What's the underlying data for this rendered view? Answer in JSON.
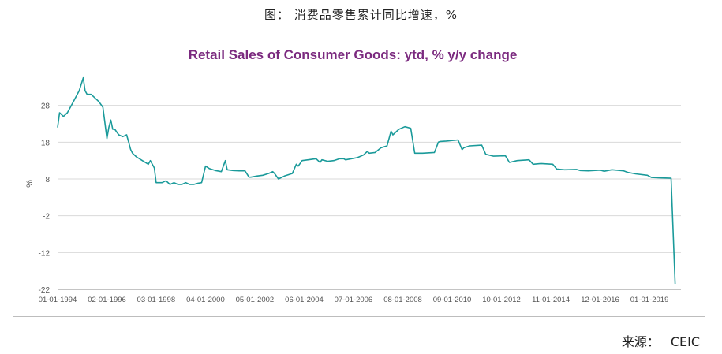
{
  "caption": "图：  消费品零售累计同比增速，%",
  "source": {
    "label": "来源：",
    "value": "CEIC"
  },
  "chart_data": {
    "type": "line",
    "title": "Retail Sales of Consumer Goods: ytd, % y/y change",
    "xlabel": "",
    "ylabel": "%",
    "ylim": [
      -22,
      38
    ],
    "yticks": [
      -22,
      -12,
      -2,
      8,
      18,
      28
    ],
    "xlim": [
      "1994-01-01",
      "2020-05-01"
    ],
    "xticks": [
      "01-01-1994",
      "02-01-1996",
      "03-01-1998",
      "04-01-2000",
      "05-01-2002",
      "06-01-2004",
      "07-01-2006",
      "08-01-2008",
      "09-01-2010",
      "10-01-2012",
      "11-01-2014",
      "12-01-2016",
      "01-01-2019"
    ],
    "grid": "horizontal",
    "colors": {
      "line": "#1a9a9a",
      "title": "#7b2a7f",
      "grid": "#d9d9d9",
      "axis": "#888888"
    },
    "series": [
      {
        "x": [
          "1994-01-01",
          "1994-02-01",
          "1994-04-01",
          "1994-06-01",
          "1994-09-01",
          "1994-12-01",
          "1995-02-01",
          "1995-03-01",
          "1995-04-01",
          "1995-06-01",
          "1995-08-01",
          "1995-10-01",
          "1995-12-01",
          "1996-02-01",
          "1996-03-01",
          "1996-04-01",
          "1996-05-01",
          "1996-06-01",
          "1996-08-01",
          "1996-10-01",
          "1996-12-01",
          "1997-02-01",
          "1997-03-01",
          "1997-05-01",
          "1997-08-01",
          "1997-11-01",
          "1997-12-01",
          "1998-02-01",
          "1998-03-01",
          "1998-04-01",
          "1998-06-01",
          "1998-08-01",
          "1998-10-01",
          "1998-12-01",
          "1999-02-01",
          "1999-04-01",
          "1999-06-01",
          "1999-08-01",
          "1999-10-01",
          "1999-12-01",
          "2000-02-01",
          "2000-04-01",
          "2000-06-01",
          "2000-09-01",
          "2000-12-01",
          "2001-02-01",
          "2001-03-01",
          "2001-06-01",
          "2001-09-01",
          "2001-12-01",
          "2002-02-01",
          "2002-03-01",
          "2002-06-01",
          "2002-09-01",
          "2002-12-01",
          "2003-02-01",
          "2003-03-01",
          "2003-05-01",
          "2003-08-01",
          "2003-12-01",
          "2004-02-01",
          "2004-03-01",
          "2004-05-01",
          "2004-08-01",
          "2004-12-01",
          "2005-02-01",
          "2005-03-01",
          "2005-06-01",
          "2005-09-01",
          "2005-12-01",
          "2006-02-01",
          "2006-03-01",
          "2006-06-01",
          "2006-09-01",
          "2006-12-01",
          "2007-02-01",
          "2007-03-01",
          "2007-06-01",
          "2007-09-01",
          "2007-12-01",
          "2008-02-01",
          "2008-03-01",
          "2008-06-01",
          "2008-09-01",
          "2008-12-01",
          "2009-02-01",
          "2009-06-01",
          "2009-12-01",
          "2010-02-01",
          "2010-03-01",
          "2010-06-01",
          "2010-12-01",
          "2011-02-01",
          "2011-03-01",
          "2011-06-01",
          "2011-12-01",
          "2012-02-01",
          "2012-06-01",
          "2012-12-01",
          "2013-02-01",
          "2013-06-01",
          "2013-12-01",
          "2014-02-01",
          "2014-06-01",
          "2014-12-01",
          "2015-02-01",
          "2015-06-01",
          "2015-12-01",
          "2016-02-01",
          "2016-06-01",
          "2016-12-01",
          "2017-02-01",
          "2017-06-01",
          "2017-12-01",
          "2018-02-01",
          "2018-06-01",
          "2018-12-01",
          "2019-02-01",
          "2019-06-01",
          "2019-12-01",
          "2020-02-01"
        ],
        "values": [
          22,
          26,
          25,
          26,
          29,
          32,
          35.5,
          32,
          31,
          31,
          30,
          29,
          27.5,
          19,
          22,
          24,
          21.5,
          21.5,
          20,
          19.5,
          20,
          16,
          15,
          14,
          13,
          12,
          13,
          11,
          7,
          7,
          7,
          7.5,
          6.5,
          7,
          6.5,
          6.5,
          7,
          6.5,
          6.5,
          6.8,
          7,
          11.5,
          10.8,
          10.3,
          10,
          13,
          10.5,
          10.3,
          10.2,
          10.2,
          8.5,
          8.5,
          8.8,
          9,
          9.5,
          10,
          9.5,
          8,
          8.8,
          9.5,
          12,
          11.5,
          13,
          13.2,
          13.5,
          12.5,
          13.2,
          12.8,
          13,
          13.5,
          13.5,
          13.2,
          13.5,
          13.8,
          14.5,
          15.5,
          15,
          15.2,
          16.5,
          17,
          21,
          20,
          21.5,
          22.2,
          21.8,
          15,
          15,
          15.2,
          18,
          18.2,
          18.3,
          18.6,
          16,
          16.5,
          17,
          17.2,
          14.7,
          14.2,
          14.3,
          12.5,
          13,
          13.2,
          12,
          12.2,
          12,
          10.7,
          10.5,
          10.6,
          10.3,
          10.2,
          10.4,
          10.1,
          10.5,
          10.2,
          9.8,
          9.4,
          9,
          8.4,
          8.3,
          8.2,
          -20.5
        ]
      }
    ]
  }
}
